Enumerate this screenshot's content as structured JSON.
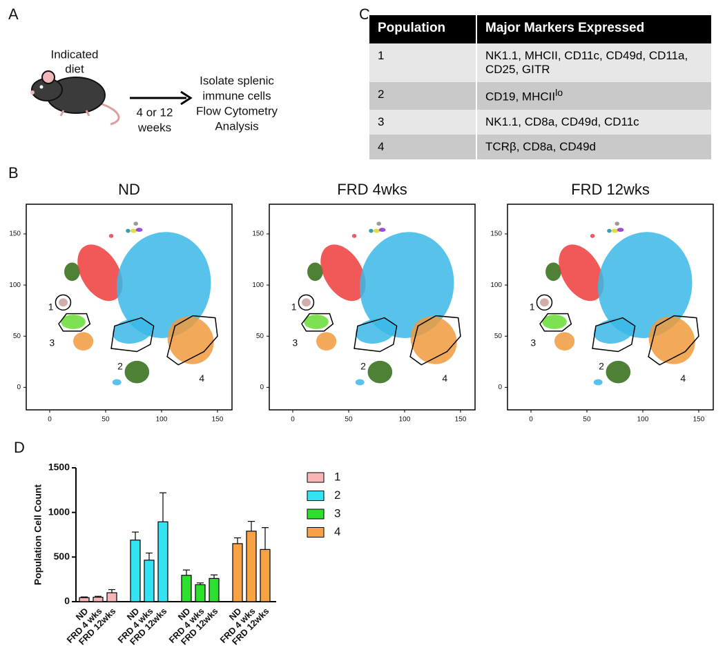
{
  "panel_labels": [
    "A",
    "B",
    "C",
    "D"
  ],
  "diagram": {
    "diet": [
      "Indicated",
      "diet"
    ],
    "duration": [
      "4 or 12",
      "weeks"
    ],
    "outcome": [
      "Isolate splenic",
      "immune cells",
      "Flow Cytometry",
      "Analysis"
    ]
  },
  "table": {
    "header": [
      "Population",
      "Major Markers Expressed"
    ],
    "rows": [
      [
        "1",
        "NK1.1, MHCII, CD11c, CD49d, CD11a, CD25, GITR"
      ],
      [
        "2",
        {
          "text": "CD19, MHCII",
          "sup": "lo"
        }
      ],
      [
        "3",
        "NK1.1, CD8a, CD49d, CD11c"
      ],
      [
        "4",
        "TCRβ, CD8a, CD49d"
      ]
    ]
  },
  "tsne": {
    "titles": [
      "ND",
      "FRD 4wks",
      "FRD 12wks"
    ],
    "gates": [
      "1",
      "2",
      "3",
      "4"
    ],
    "xlim": [
      -21,
      163
    ],
    "ylim": [
      -22,
      179
    ],
    "xticks": [
      0,
      50,
      100,
      150
    ],
    "yticks": [
      0,
      50,
      100,
      150
    ]
  },
  "chart_data": {
    "type": "bar",
    "ylabel": "Population Cell Count",
    "categories": [
      "ND",
      "FRD 4 wks",
      "FRD 12wks"
    ],
    "series": [
      {
        "name": "1",
        "color": "#f7b5b5",
        "values": [
          45,
          50,
          100
        ],
        "errors": [
          8,
          10,
          35
        ]
      },
      {
        "name": "2",
        "color": "#33e3f2",
        "values": [
          690,
          465,
          895
        ],
        "errors": [
          90,
          80,
          325
        ]
      },
      {
        "name": "3",
        "color": "#2ee02e",
        "values": [
          295,
          190,
          260
        ],
        "errors": [
          60,
          20,
          40
        ]
      },
      {
        "name": "4",
        "color": "#f7a244",
        "values": [
          650,
          790,
          585
        ],
        "errors": [
          65,
          110,
          245
        ]
      }
    ],
    "ylim": [
      0,
      1500
    ],
    "yticks": [
      0,
      500,
      1000,
      1500
    ]
  }
}
